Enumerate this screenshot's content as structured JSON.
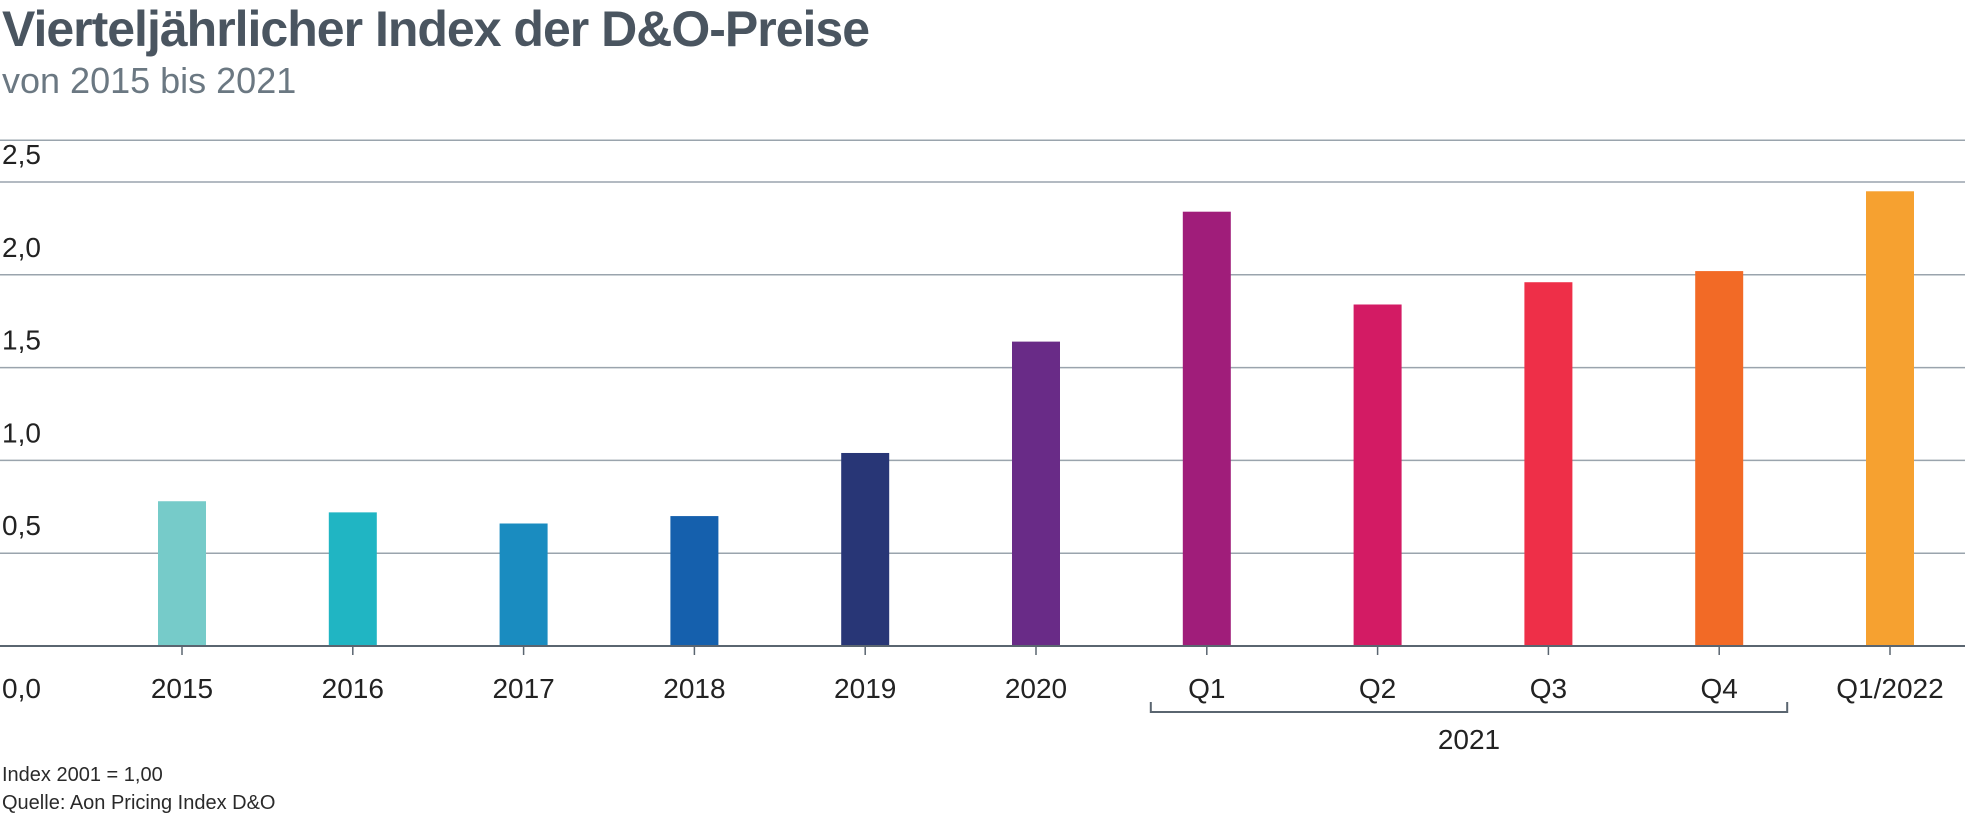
{
  "header": {
    "title": "Vierteljährlicher Index der D&O-Preise",
    "subtitle": "von 2015 bis 2021"
  },
  "footer": {
    "index_note": "Index 2001 = 1,00",
    "source": "Quelle: Aon Pricing Index D&O"
  },
  "chart_data": {
    "type": "bar",
    "title": "Vierteljährlicher Index der D&O-Preise",
    "subtitle": "von 2015 bis 2021",
    "xlabel": "",
    "ylabel": "",
    "ylim": [
      0,
      2.5
    ],
    "yticks": [
      "0,0",
      "0,5",
      "1,0",
      "1,5",
      "2,0",
      "2,5"
    ],
    "grid": true,
    "categories": [
      "2015",
      "2016",
      "2017",
      "2018",
      "2019",
      "2020",
      "Q1",
      "Q2",
      "Q3",
      "Q4",
      "Q1/2022"
    ],
    "values": [
      0.78,
      0.72,
      0.66,
      0.7,
      1.04,
      1.64,
      2.34,
      1.84,
      1.96,
      2.02,
      2.45
    ],
    "colors": [
      "#76cbc9",
      "#20b5c3",
      "#1a8cc0",
      "#1560ad",
      "#283676",
      "#692b87",
      "#a01d7a",
      "#d31b64",
      "#ee2f48",
      "#f26a26",
      "#f6a130"
    ],
    "group_bracket": {
      "label": "2021",
      "members": [
        "Q1",
        "Q2",
        "Q3",
        "Q4"
      ]
    }
  }
}
